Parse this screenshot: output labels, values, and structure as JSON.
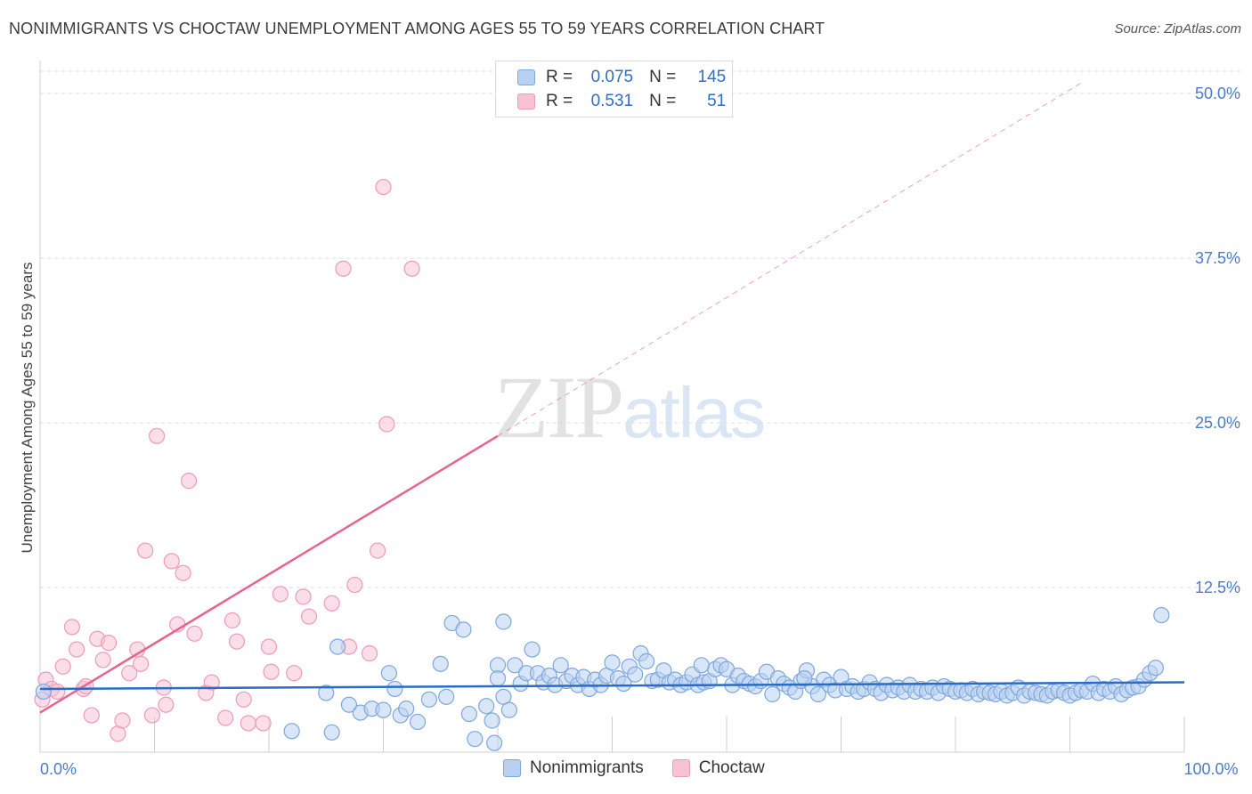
{
  "title": "NONIMMIGRANTS VS CHOCTAW UNEMPLOYMENT AMONG AGES 55 TO 59 YEARS CORRELATION CHART",
  "source": "Source: ZipAtlas.com",
  "watermark": {
    "zip": "ZIP",
    "atlas": "atlas"
  },
  "legend": {
    "rows": [
      {
        "r_label": "R =",
        "r_value": "0.075",
        "n_label": "N =",
        "n_value": "145"
      },
      {
        "r_label": "R =",
        "r_value": "0.531",
        "n_label": "N =",
        "n_value": "51"
      }
    ]
  },
  "bottom_legend": {
    "nonimmigrants": "Nonimmigrants",
    "choctaw": "Choctaw"
  },
  "colors": {
    "blue_fill": "#b9d1f1",
    "blue_stroke": "#7ea7df",
    "blue_line": "#2b6cc4",
    "pink_fill": "#f7c3d3",
    "pink_stroke": "#ee9bb5",
    "pink_line": "#e8638e",
    "grid": "#dcdcdc",
    "tick_text": "#4a7cc9"
  },
  "chart_data": {
    "type": "scatter",
    "title": "NONIMMIGRANTS VS CHOCTAW UNEMPLOYMENT AMONG AGES 55 TO 59 YEARS CORRELATION CHART",
    "xlabel": "",
    "ylabel": "Unemployment Among Ages 55 to 59 years",
    "xlim": [
      0,
      100
    ],
    "ylim": [
      0,
      52.5
    ],
    "x_tick_labels": [
      {
        "value": 0,
        "label": "0.0%"
      },
      {
        "value": 100,
        "label": "100.0%"
      }
    ],
    "y_ticks": [
      {
        "value": 12.5,
        "label": "12.5%"
      },
      {
        "value": 25.0,
        "label": "25.0%"
      },
      {
        "value": 37.5,
        "label": "37.5%"
      },
      {
        "value": 50.0,
        "label": "50.0%"
      }
    ],
    "x_gridlines": [
      10,
      20,
      30,
      40,
      50,
      60,
      70,
      80,
      90,
      100
    ],
    "series": [
      {
        "name": "Nonimmigrants",
        "color": "blue",
        "r": 0.075,
        "n": 145,
        "trend": {
          "x0": 0,
          "y0": 4.8,
          "x1": 100,
          "y1": 5.3
        },
        "points": [
          [
            0.3,
            4.6
          ],
          [
            25,
            4.5
          ],
          [
            26,
            8
          ],
          [
            28,
            3
          ],
          [
            29,
            3.3
          ],
          [
            30,
            3.2
          ],
          [
            27,
            3.6
          ],
          [
            22,
            1.6
          ],
          [
            25.5,
            1.5
          ],
          [
            30.5,
            6
          ],
          [
            31,
            4.8
          ],
          [
            31.5,
            2.8
          ],
          [
            32,
            3.3
          ],
          [
            33,
            2.3
          ],
          [
            34,
            4
          ],
          [
            35,
            6.7
          ],
          [
            35.5,
            4.2
          ],
          [
            36,
            9.8
          ],
          [
            37,
            9.3
          ],
          [
            37.5,
            2.9
          ],
          [
            38,
            1
          ],
          [
            39,
            3.5
          ],
          [
            39.5,
            2.4
          ],
          [
            40,
            6.6
          ],
          [
            40.5,
            4.2
          ],
          [
            41,
            3.2
          ],
          [
            39.7,
            0.7
          ],
          [
            40,
            5.6
          ],
          [
            40.5,
            9.9
          ],
          [
            41.5,
            6.6
          ],
          [
            42,
            5.2
          ],
          [
            42.5,
            6
          ],
          [
            43,
            7.8
          ],
          [
            43.5,
            6
          ],
          [
            44,
            5.3
          ],
          [
            44.5,
            5.8
          ],
          [
            45,
            5.1
          ],
          [
            45.5,
            6.6
          ],
          [
            46,
            5.4
          ],
          [
            46.5,
            5.8
          ],
          [
            47,
            5.1
          ],
          [
            47.5,
            5.7
          ],
          [
            48,
            4.8
          ],
          [
            48.5,
            5.5
          ],
          [
            49,
            5.1
          ],
          [
            49.5,
            5.8
          ],
          [
            50,
            6.8
          ],
          [
            50.5,
            5.6
          ],
          [
            51,
            5.2
          ],
          [
            51.5,
            6.5
          ],
          [
            52,
            5.9
          ],
          [
            52.5,
            7.5
          ],
          [
            53,
            6.9
          ],
          [
            53.5,
            5.4
          ],
          [
            54,
            5.5
          ],
          [
            54.5,
            6.2
          ],
          [
            55,
            5.3
          ],
          [
            55.5,
            5.5
          ],
          [
            56,
            5.1
          ],
          [
            56.5,
            5.3
          ],
          [
            57,
            5.9
          ],
          [
            57.5,
            5.1
          ],
          [
            58,
            5.3
          ],
          [
            58.5,
            5.4
          ],
          [
            59,
            6.3
          ],
          [
            59.5,
            6.6
          ],
          [
            60,
            6.3
          ],
          [
            60.5,
            5.1
          ],
          [
            61,
            5.8
          ],
          [
            61.5,
            5.4
          ],
          [
            62,
            5.2
          ],
          [
            62.5,
            5
          ],
          [
            63,
            5.4
          ],
          [
            63.5,
            6.1
          ],
          [
            64,
            4.4
          ],
          [
            64.5,
            5.6
          ],
          [
            65,
            5.2
          ],
          [
            65.5,
            4.9
          ],
          [
            66,
            4.6
          ],
          [
            66.5,
            5.4
          ],
          [
            67,
            6.2
          ],
          [
            67.5,
            5
          ],
          [
            68,
            4.4
          ],
          [
            68.5,
            5.5
          ],
          [
            69,
            5.1
          ],
          [
            69.5,
            4.7
          ],
          [
            70,
            5.7
          ],
          [
            70.5,
            4.8
          ],
          [
            71,
            5
          ],
          [
            71.5,
            4.6
          ],
          [
            72,
            4.8
          ],
          [
            72.5,
            5.3
          ],
          [
            73,
            4.8
          ],
          [
            73.5,
            4.5
          ],
          [
            74,
            5.1
          ],
          [
            74.5,
            4.7
          ],
          [
            75,
            4.9
          ],
          [
            75.5,
            4.6
          ],
          [
            76,
            5.1
          ],
          [
            76.5,
            4.6
          ],
          [
            77,
            4.8
          ],
          [
            77.5,
            4.6
          ],
          [
            78,
            4.9
          ],
          [
            78.5,
            4.5
          ],
          [
            79,
            5
          ],
          [
            79.5,
            4.8
          ],
          [
            80,
            4.6
          ],
          [
            80.5,
            4.7
          ],
          [
            81,
            4.5
          ],
          [
            81.5,
            4.8
          ],
          [
            82,
            4.4
          ],
          [
            82.5,
            4.6
          ],
          [
            83,
            4.5
          ],
          [
            83.5,
            4.4
          ],
          [
            84,
            4.6
          ],
          [
            84.5,
            4.3
          ],
          [
            85,
            4.5
          ],
          [
            85.5,
            4.9
          ],
          [
            86,
            4.3
          ],
          [
            86.5,
            4.6
          ],
          [
            87,
            4.5
          ],
          [
            87.5,
            4.4
          ],
          [
            88,
            4.3
          ],
          [
            88.5,
            4.6
          ],
          [
            89,
            4.7
          ],
          [
            89.5,
            4.5
          ],
          [
            90,
            4.3
          ],
          [
            90.5,
            4.5
          ],
          [
            91,
            4.7
          ],
          [
            91.5,
            4.6
          ],
          [
            92,
            5.2
          ],
          [
            92.5,
            4.5
          ],
          [
            93,
            4.8
          ],
          [
            93.5,
            4.6
          ],
          [
            94,
            5
          ],
          [
            94.5,
            4.4
          ],
          [
            95,
            4.7
          ],
          [
            95.5,
            4.9
          ],
          [
            96,
            5
          ],
          [
            96.5,
            5.5
          ],
          [
            97,
            6
          ],
          [
            97.5,
            6.4
          ],
          [
            98,
            10.4
          ],
          [
            57.8,
            6.6
          ],
          [
            66.8,
            5.6
          ]
        ]
      },
      {
        "name": "Choctaw",
        "color": "pink",
        "r": 0.531,
        "n": 51,
        "trend": {
          "x0": 0,
          "y0": 3,
          "x1": 40,
          "y1": 24
        },
        "trend_extension": {
          "x0": 40,
          "y0": 24,
          "x1": 91,
          "y1": 50.8
        },
        "points": [
          [
            0.2,
            4
          ],
          [
            0.5,
            5.5
          ],
          [
            1,
            4.8
          ],
          [
            1.5,
            4.6
          ],
          [
            2,
            6.5
          ],
          [
            2.8,
            9.5
          ],
          [
            3.2,
            7.8
          ],
          [
            3.8,
            4.8
          ],
          [
            4,
            5
          ],
          [
            4.5,
            2.8
          ],
          [
            5,
            8.6
          ],
          [
            5.5,
            7
          ],
          [
            6,
            8.3
          ],
          [
            6.8,
            1.4
          ],
          [
            7.2,
            2.4
          ],
          [
            7.8,
            6
          ],
          [
            8.5,
            7.8
          ],
          [
            8.8,
            6.7
          ],
          [
            9.2,
            15.3
          ],
          [
            9.8,
            2.8
          ],
          [
            10.2,
            24
          ],
          [
            10.8,
            4.9
          ],
          [
            11,
            3.6
          ],
          [
            11.5,
            14.5
          ],
          [
            12,
            9.7
          ],
          [
            12.5,
            13.6
          ],
          [
            13,
            20.6
          ],
          [
            13.5,
            9
          ],
          [
            14.5,
            4.5
          ],
          [
            15,
            5.3
          ],
          [
            16.2,
            2.6
          ],
          [
            16.8,
            10
          ],
          [
            17.2,
            8.4
          ],
          [
            17.8,
            4
          ],
          [
            18.2,
            2.2
          ],
          [
            19.5,
            2.2
          ],
          [
            20,
            8
          ],
          [
            20.2,
            6.1
          ],
          [
            21,
            12
          ],
          [
            22.2,
            6
          ],
          [
            23,
            11.8
          ],
          [
            23.5,
            10.3
          ],
          [
            25.5,
            11.3
          ],
          [
            26.5,
            36.7
          ],
          [
            27,
            8
          ],
          [
            27.5,
            12.7
          ],
          [
            28.8,
            7.5
          ],
          [
            29.5,
            15.3
          ],
          [
            30,
            42.9
          ],
          [
            30.3,
            24.9
          ],
          [
            32.5,
            36.7
          ]
        ]
      }
    ]
  }
}
